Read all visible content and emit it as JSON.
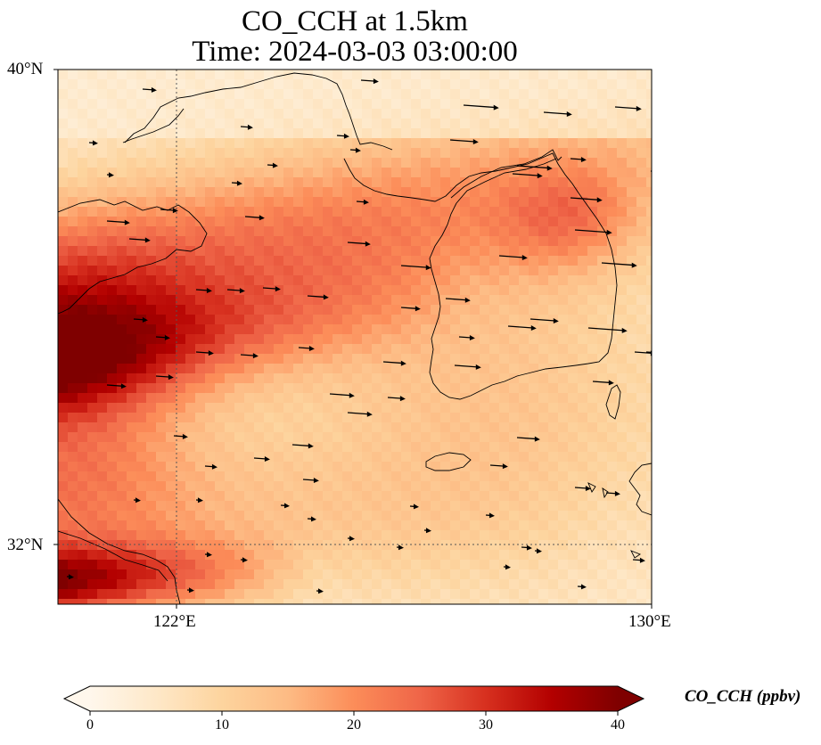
{
  "figure": {
    "title_line1": "CO_CCH at 1.5km",
    "title_line2": "Time: 2024-03-03 03:00:00"
  },
  "map": {
    "lon_range": [
      120,
      130
    ],
    "lat_range": [
      31,
      40
    ],
    "lat_ticks": [
      {
        "value": 40,
        "label": "40°N"
      },
      {
        "value": 32,
        "label": "32°N"
      }
    ],
    "lon_ticks": [
      {
        "value": 122,
        "label": "122°E"
      },
      {
        "value": 130,
        "label": "130°E"
      }
    ],
    "gridlines": "dotted at 122°E and 32°N",
    "features": [
      "coastlines",
      "country borders",
      "wind vectors"
    ]
  },
  "colorbar": {
    "label": "CO_CCH (ppbv)",
    "min": 0,
    "max": 40,
    "ticks": [
      "0",
      "10",
      "20",
      "30",
      "40"
    ],
    "colormap": "OrRd",
    "extend": "both",
    "stops": [
      "#fff7ec",
      "#fee8c8",
      "#fdd49e",
      "#fdbb84",
      "#fc8d59",
      "#ef6548",
      "#d7301f",
      "#b30000",
      "#7f0000"
    ]
  },
  "field": {
    "description": "CO concentration field shown as colored grid cells",
    "plume_max_ppbv": 40,
    "background_ppbv": 3
  }
}
